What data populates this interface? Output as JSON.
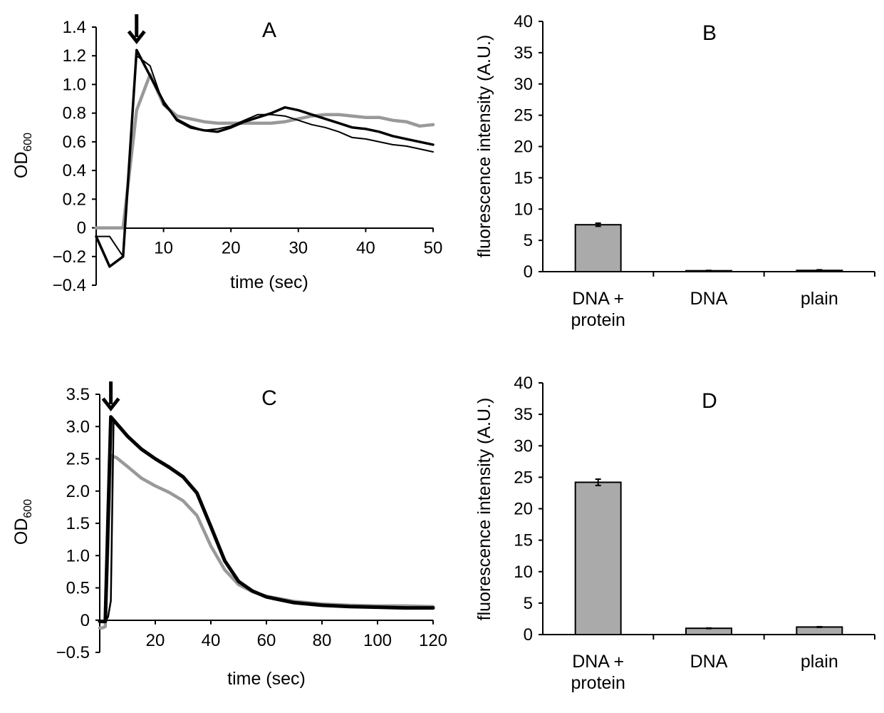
{
  "chart_data": [
    {
      "id": "A",
      "type": "line",
      "panel_label": "A",
      "xlabel": "time (sec)",
      "ylabel": "OD",
      "ylabel_sub": "600",
      "xlim": [
        0,
        50
      ],
      "ylim": [
        -0.4,
        1.4
      ],
      "xticks": [
        "10",
        "20",
        "30",
        "40",
        "50"
      ],
      "yticks": [
        "−0.4",
        "−0.2",
        "0",
        "0.2",
        "0.4",
        "0.6",
        "0.8",
        "1.0",
        "1.2",
        "1.4"
      ],
      "annotation": "downward arrow at injection time (~6 sec)",
      "arrow_x": 6,
      "series": [
        {
          "name": "gray",
          "color": "#999999",
          "x": [
            0,
            2,
            4,
            6,
            8,
            10,
            12,
            14,
            16,
            18,
            20,
            22,
            24,
            26,
            28,
            30,
            32,
            34,
            36,
            38,
            40,
            42,
            44,
            46,
            48,
            50
          ],
          "y": [
            0.0,
            0.0,
            0.0,
            0.82,
            1.07,
            0.86,
            0.78,
            0.76,
            0.74,
            0.73,
            0.73,
            0.73,
            0.73,
            0.73,
            0.74,
            0.76,
            0.78,
            0.79,
            0.79,
            0.78,
            0.77,
            0.77,
            0.75,
            0.74,
            0.71,
            0.72
          ]
        },
        {
          "name": "black thick",
          "color": "#000000",
          "x": [
            0,
            2,
            4,
            6,
            8,
            10,
            12,
            14,
            16,
            18,
            20,
            22,
            24,
            26,
            28,
            30,
            32,
            34,
            36,
            38,
            40,
            42,
            44,
            46,
            48,
            50
          ],
          "y": [
            -0.06,
            -0.27,
            -0.2,
            1.24,
            1.06,
            0.88,
            0.75,
            0.7,
            0.68,
            0.67,
            0.7,
            0.74,
            0.77,
            0.8,
            0.84,
            0.82,
            0.79,
            0.76,
            0.73,
            0.7,
            0.69,
            0.67,
            0.64,
            0.62,
            0.6,
            0.58
          ]
        },
        {
          "name": "black thin",
          "color": "#000000",
          "x": [
            0,
            2,
            4,
            6,
            8,
            10,
            12,
            14,
            16,
            18,
            20,
            22,
            24,
            26,
            28,
            30,
            32,
            34,
            36,
            38,
            40,
            42,
            44,
            46,
            48,
            50
          ],
          "y": [
            -0.06,
            -0.06,
            -0.2,
            1.2,
            1.13,
            0.86,
            0.76,
            0.71,
            0.68,
            0.69,
            0.71,
            0.75,
            0.79,
            0.79,
            0.78,
            0.75,
            0.72,
            0.7,
            0.67,
            0.63,
            0.62,
            0.6,
            0.58,
            0.57,
            0.55,
            0.53
          ]
        }
      ]
    },
    {
      "id": "B",
      "type": "bar",
      "panel_label": "B",
      "ylabel": "fluorescence intensity (A.U.)",
      "ylim": [
        0,
        40
      ],
      "yticks": [
        "0",
        "5",
        "10",
        "15",
        "20",
        "25",
        "30",
        "35",
        "40"
      ],
      "categories": [
        [
          "DNA +",
          "protein"
        ],
        [
          "DNA"
        ],
        [
          "plain"
        ]
      ],
      "values": [
        7.5,
        0.15,
        0.2
      ],
      "errors": [
        0.25,
        0.05,
        0.1
      ],
      "bar_color": "#aaaaaa"
    },
    {
      "id": "C",
      "type": "line",
      "panel_label": "C",
      "xlabel": "time (sec)",
      "ylabel": "OD",
      "ylabel_sub": "600",
      "xlim": [
        0,
        120
      ],
      "ylim": [
        -0.5,
        3.5
      ],
      "xticks": [
        "20",
        "40",
        "60",
        "80",
        "100",
        "120"
      ],
      "yticks": [
        "−0.5",
        "0",
        "0.5",
        "1.0",
        "1.5",
        "2.0",
        "2.5",
        "3.0",
        "3.5"
      ],
      "annotation": "downward arrow at injection time (~4 sec)",
      "arrow_x": 4,
      "series": [
        {
          "name": "gray",
          "color": "#999999",
          "x": [
            0,
            1,
            2,
            3,
            4,
            6,
            10,
            15,
            20,
            25,
            30,
            35,
            40,
            45,
            50,
            55,
            60,
            70,
            80,
            90,
            100,
            110,
            120
          ],
          "y": [
            -0.12,
            -0.12,
            -0.1,
            1.2,
            2.55,
            2.52,
            2.38,
            2.2,
            2.08,
            1.98,
            1.85,
            1.62,
            1.15,
            0.78,
            0.55,
            0.44,
            0.37,
            0.29,
            0.25,
            0.23,
            0.22,
            0.22,
            0.21
          ]
        },
        {
          "name": "black thick",
          "color": "#000000",
          "x": [
            0,
            1,
            2,
            3,
            4,
            6,
            10,
            15,
            20,
            25,
            30,
            35,
            40,
            45,
            50,
            55,
            60,
            70,
            80,
            90,
            100,
            110,
            120
          ],
          "y": [
            -0.02,
            -0.02,
            -0.02,
            1.6,
            3.15,
            3.05,
            2.85,
            2.65,
            2.5,
            2.37,
            2.22,
            1.97,
            1.45,
            0.92,
            0.6,
            0.45,
            0.36,
            0.27,
            0.23,
            0.21,
            0.2,
            0.19,
            0.19
          ]
        },
        {
          "name": "black thin",
          "color": "#000000",
          "x": [
            0,
            1,
            2,
            3,
            4,
            5,
            6,
            10,
            15,
            20,
            25,
            30,
            35,
            40,
            45,
            50,
            55,
            60,
            70,
            80,
            90,
            100,
            110,
            120
          ],
          "y": [
            -0.02,
            -0.02,
            -0.02,
            0.05,
            0.3,
            3.12,
            3.05,
            2.85,
            2.65,
            2.5,
            2.37,
            2.22,
            1.97,
            1.45,
            0.92,
            0.6,
            0.45,
            0.36,
            0.27,
            0.23,
            0.21,
            0.2,
            0.19,
            0.19
          ]
        }
      ]
    },
    {
      "id": "D",
      "type": "bar",
      "panel_label": "D",
      "ylabel": "fluorescence intensity (A.U.)",
      "ylim": [
        0,
        40
      ],
      "yticks": [
        "0",
        "5",
        "10",
        "15",
        "20",
        "25",
        "30",
        "35",
        "40"
      ],
      "categories": [
        [
          "DNA +",
          "protein"
        ],
        [
          "DNA"
        ],
        [
          "plain"
        ]
      ],
      "values": [
        24.2,
        1.0,
        1.2
      ],
      "errors": [
        0.5,
        0.05,
        0.05
      ],
      "bar_color": "#aaaaaa"
    }
  ]
}
